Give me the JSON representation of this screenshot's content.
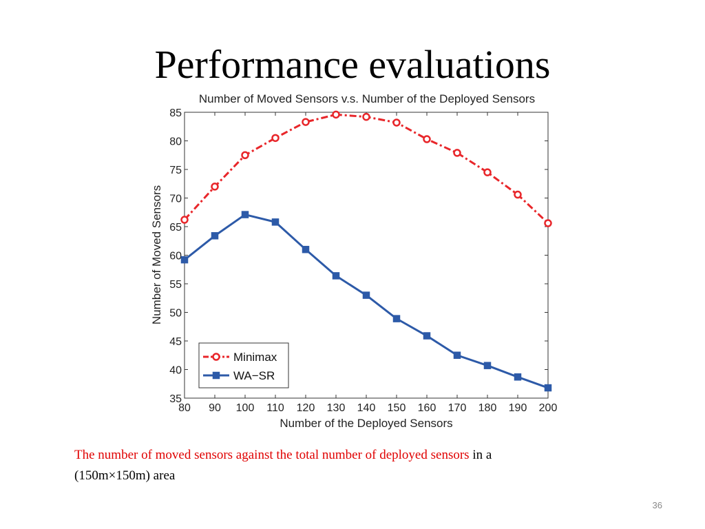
{
  "slide": {
    "title": "Performance evaluations",
    "caption_highlight": "The number of moved sensors against the total number of deployed sensors",
    "caption_rest_1": " in a",
    "caption_rest_2": "(150m×150m) area",
    "slide_number": "36",
    "highlight_color": "#e00000"
  },
  "chart_data": {
    "type": "line",
    "title": "Number of Moved Sensors v.s. Number of the Deployed Sensors",
    "xlabel": "Number of the Deployed Sensors",
    "ylabel": "Number of Moved Sensors",
    "x": [
      80,
      90,
      100,
      110,
      120,
      130,
      140,
      150,
      160,
      170,
      180,
      190,
      200
    ],
    "xlim": [
      80,
      200
    ],
    "ylim": [
      35,
      85
    ],
    "xticks": [
      "80",
      "90",
      "100",
      "110",
      "120",
      "130",
      "140",
      "150",
      "160",
      "170",
      "180",
      "190",
      "200"
    ],
    "yticks": [
      "35",
      "40",
      "45",
      "50",
      "55",
      "60",
      "65",
      "70",
      "75",
      "80",
      "85"
    ],
    "legend_position": "bottom-left",
    "grid": false,
    "series": [
      {
        "name": "Minimax",
        "values": [
          66.2,
          72.0,
          77.5,
          80.5,
          83.3,
          84.6,
          84.2,
          83.2,
          80.3,
          77.9,
          74.5,
          70.6,
          65.6
        ],
        "color": "#e8262a",
        "marker": "circle",
        "line_style": "dash-dot"
      },
      {
        "name": "WA−SR",
        "values": [
          59.2,
          63.4,
          67.1,
          65.8,
          61.0,
          56.4,
          53.0,
          48.9,
          45.9,
          42.5,
          40.7,
          38.7,
          36.8
        ],
        "color": "#2d5aa8",
        "marker": "square",
        "line_style": "solid"
      }
    ]
  }
}
